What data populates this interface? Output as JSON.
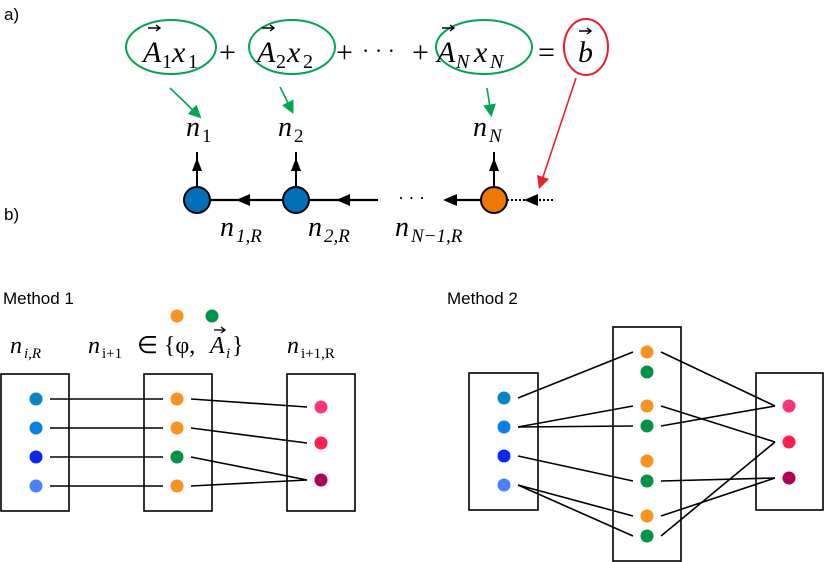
{
  "labels": {
    "a": "a)",
    "b": "b)",
    "method1": "Method 1",
    "method2": "Method 2"
  },
  "equation": {
    "terms": [
      {
        "A": "A",
        "Asub": "1",
        "x": "x",
        "xsub": "1"
      },
      {
        "A": "A",
        "Asub": "2",
        "x": "x",
        "xsub": "2"
      },
      {
        "A": "A",
        "Asub": "N",
        "x": "x",
        "xsub": "N"
      }
    ],
    "plus": "+",
    "dots": "· · ·",
    "equals": "=",
    "b": "b"
  },
  "chain": {
    "outputs": [
      {
        "n": "n",
        "sub": "1"
      },
      {
        "n": "n",
        "sub": "2"
      },
      {
        "n": "n",
        "sub": "N"
      }
    ],
    "bonds": [
      {
        "n": "n",
        "sub": "1,R"
      },
      {
        "n": "n",
        "sub": "2,R"
      },
      {
        "n": "n",
        "sub": "N−1,R"
      }
    ],
    "dots": "· · ·",
    "node_colors": [
      "#0070B8",
      "#0070B8",
      "#F07800"
    ]
  },
  "method1": {
    "left_label": {
      "n": "n",
      "sub": "i,R"
    },
    "middle_label": {
      "n": "n",
      "sub": "i+1",
      "in": "∈ {φ,",
      "A": "A",
      "Asub": "i",
      "close": "}"
    },
    "right_label": {
      "n": "n",
      "sub": "i+1,R"
    },
    "legend_colors": [
      "#F7931E",
      "#009245"
    ],
    "left_colors": [
      "#0A84C6",
      "#0A7FE6",
      "#0A28EE",
      "#4A80FF"
    ],
    "middle_colors": [
      "#F7931E",
      "#F7931E",
      "#009245",
      "#F7931E"
    ],
    "right_colors": [
      "#FF337A",
      "#FF1F4F",
      "#B0004F"
    ],
    "edges_left_middle": [
      [
        0,
        0
      ],
      [
        1,
        1
      ],
      [
        2,
        2
      ],
      [
        3,
        3
      ]
    ],
    "edges_middle_right": [
      [
        0,
        0
      ],
      [
        1,
        1
      ],
      [
        2,
        2
      ],
      [
        3,
        2
      ]
    ]
  },
  "method2": {
    "left_colors": [
      "#0A84C6",
      "#0A7FE6",
      "#0A28EE",
      "#4A80FF"
    ],
    "middle_colors": [
      "#F7931E",
      "#009245",
      "#F7931E",
      "#009245",
      "#F7931E",
      "#009245",
      "#F7931E",
      "#009245"
    ],
    "right_colors": [
      "#FF337A",
      "#FF1F4F",
      "#B0004F"
    ],
    "edges_left_middle": [
      [
        0,
        0
      ],
      [
        1,
        2
      ],
      [
        1,
        3
      ],
      [
        2,
        5
      ],
      [
        3,
        6
      ],
      [
        3,
        7
      ]
    ],
    "edges_middle_right": [
      [
        0,
        0
      ],
      [
        2,
        1
      ],
      [
        3,
        0
      ],
      [
        5,
        2
      ],
      [
        6,
        2
      ],
      [
        7,
        1
      ]
    ]
  },
  "colors": {
    "term_ellipse": "#00A550",
    "b_ellipse": "#E8202A",
    "arrow_green": "#00A550",
    "arrow_red": "#E8202A"
  }
}
